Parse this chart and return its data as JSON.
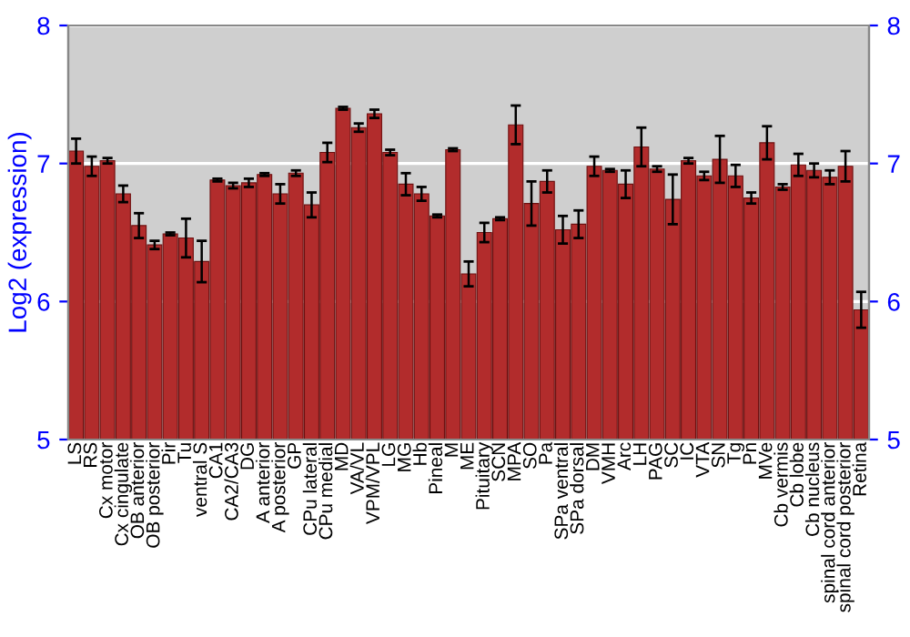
{
  "chart_data": {
    "type": "bar",
    "ylabel": "Log2 (expression)",
    "categories": [
      "LS",
      "RS",
      "Cx motor",
      "Cx cingulate",
      "OB anterior",
      "OB posterior",
      "Pir",
      "Tu",
      "ventral S",
      "CA1",
      "CA2/CA3",
      "DG",
      "A anterior",
      "A posterior",
      "GP",
      "CPu lateral",
      "CPu medial",
      "MD",
      "VA/VL",
      "VPM/VPL",
      "LG",
      "MG",
      "Hb",
      "Pineal",
      "M",
      "ME",
      "Pituitary",
      "SCN",
      "MPA",
      "SO",
      "Pa",
      "SPa ventral",
      "SPa dorsal",
      "DM",
      "VMH",
      "Arc",
      "LH",
      "PAG",
      "SC",
      "IC",
      "VTA",
      "SN",
      "Tg",
      "Pn",
      "MVe",
      "Cb vermis",
      "Cb lobe",
      "Cb nucleus",
      "spinal cord anterior",
      "spinal cord posterior",
      "Retina"
    ],
    "values": [
      7.09,
      6.98,
      7.02,
      6.78,
      6.55,
      6.41,
      6.49,
      6.46,
      6.29,
      6.88,
      6.84,
      6.86,
      6.92,
      6.78,
      6.93,
      6.7,
      7.08,
      7.4,
      7.26,
      7.36,
      7.08,
      6.85,
      6.78,
      6.62,
      7.1,
      6.2,
      6.5,
      6.6,
      7.28,
      6.71,
      6.87,
      6.52,
      6.56,
      6.98,
      6.95,
      6.85,
      7.12,
      6.96,
      6.74,
      7.02,
      6.91,
      7.03,
      6.91,
      6.75,
      7.15,
      6.83,
      6.99,
      6.95,
      6.9,
      6.98,
      5.94
    ],
    "errors": [
      0.09,
      0.07,
      0.02,
      0.06,
      0.09,
      0.03,
      0.01,
      0.14,
      0.15,
      0.01,
      0.02,
      0.03,
      0.01,
      0.07,
      0.02,
      0.09,
      0.07,
      0.01,
      0.03,
      0.03,
      0.02,
      0.08,
      0.05,
      0.01,
      0.01,
      0.09,
      0.07,
      0.01,
      0.14,
      0.16,
      0.08,
      0.1,
      0.1,
      0.07,
      0.01,
      0.1,
      0.14,
      0.02,
      0.18,
      0.02,
      0.03,
      0.17,
      0.08,
      0.04,
      0.12,
      0.02,
      0.08,
      0.05,
      0.05,
      0.11,
      0.13
    ],
    "color": "#b22c2c",
    "ylim": [
      5,
      8
    ],
    "yticks": [
      5,
      6,
      7,
      8
    ],
    "y2lim": [
      5,
      8
    ],
    "y2ticks": [
      5,
      6,
      7,
      8
    ],
    "grid": "y"
  }
}
